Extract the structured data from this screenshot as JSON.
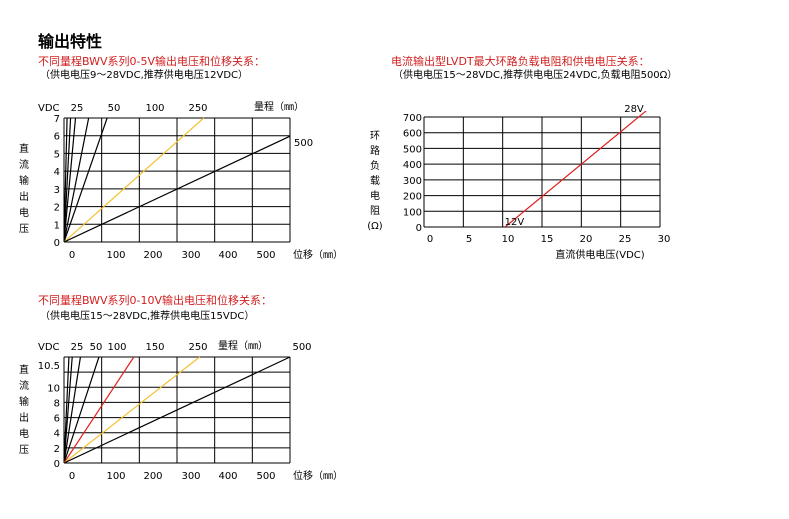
{
  "title": "输出特性",
  "captions": {
    "c1_title": "不同量程BWV系列0-5V输出电压和位移关系：",
    "c1_note": "（供电电压9～28VDC,推荐供电电压12VDC）",
    "c2_title": "电流输出型LVDT最大环路负载电阻和供电电压关系：",
    "c2_note": "（供电电压15～28VDC,推荐供电电压24VDC,负载电阻500Ω）",
    "c3_title": "不同量程BWV系列0-10V输出电压和位移关系：",
    "c3_note": "（供电电压15～28VDC,推荐供电电压15VDC）"
  },
  "colors": {
    "caption_red": "#d21f1f",
    "grid": "#000000",
    "red_line": "#e02020",
    "yellow_line": "#f2c12e",
    "black_line": "#000000"
  },
  "chart_data": [
    {
      "type": "line",
      "y_unit_label": "VDC",
      "ylabel": "直流输出电压",
      "xlabel": "位移（㎜）",
      "range_label": "量程（㎜）",
      "x_ticks": [
        "0",
        "100",
        "200",
        "300",
        "400",
        "500"
      ],
      "y_ticks": [
        "0",
        "1",
        "2",
        "3",
        "4",
        "5",
        "6",
        "7"
      ],
      "xlim": [
        0,
        550
      ],
      "ylim": [
        0,
        7.5
      ],
      "series": [
        {
          "name": "25",
          "color": "black",
          "x": [
            0,
            7.5
          ],
          "y": [
            0,
            7.5
          ],
          "label_pos": "top"
        },
        {
          "name": "",
          "color": "black",
          "x": [
            0,
            16
          ],
          "y": [
            0,
            7.5
          ],
          "label_pos": "none"
        },
        {
          "name": "50",
          "color": "black",
          "x": [
            0,
            28
          ],
          "y": [
            0,
            7.5
          ],
          "label_pos": "top"
        },
        {
          "name": "",
          "color": "black",
          "x": [
            0,
            60
          ],
          "y": [
            0,
            7.5
          ],
          "label_pos": "none"
        },
        {
          "name": "100",
          "color": "black",
          "x": [
            0,
            105
          ],
          "y": [
            0,
            7.5
          ],
          "label_pos": "top"
        },
        {
          "name": "250",
          "color": "yellow",
          "x": [
            0,
            340
          ],
          "y": [
            0,
            7.5
          ],
          "label_pos": "top"
        },
        {
          "name": "500",
          "color": "black",
          "x": [
            0,
            550
          ],
          "y": [
            0,
            6.4
          ],
          "label_pos": "right"
        }
      ]
    },
    {
      "type": "line",
      "ylabel": "环路负载电阻(Ω)",
      "xlabel": "直流供电电压(VDC)",
      "x_ticks": [
        "0",
        "5",
        "10",
        "15",
        "20",
        "25",
        "30"
      ],
      "y_ticks": [
        "0",
        "100",
        "200",
        "300",
        "400",
        "500",
        "600",
        "700"
      ],
      "xlim": [
        0,
        30
      ],
      "ylim": [
        0,
        700
      ],
      "series": [
        {
          "name": "28V",
          "color": "red",
          "x": [
            10.3,
            28.5
          ],
          "y": [
            0,
            750
          ],
          "label_pos": "top"
        }
      ],
      "annotations": [
        {
          "text": "12V",
          "x": 10,
          "y": 0
        }
      ]
    },
    {
      "type": "line",
      "y_unit_label": "VDC",
      "ylabel": "直流输出电压",
      "xlabel": "位移（㎜）",
      "range_label": "量程（㎜）",
      "x_ticks": [
        "0",
        "100",
        "200",
        "300",
        "400",
        "500"
      ],
      "y_ticks": [
        "0",
        "2",
        "4",
        "6",
        "8",
        "10",
        "10.5"
      ],
      "xlim": [
        0,
        550
      ],
      "ylim": [
        0,
        10.5
      ],
      "series": [
        {
          "name": "25",
          "color": "black",
          "x": [
            0,
            12
          ],
          "y": [
            0,
            10.5
          ],
          "label_pos": "top"
        },
        {
          "name": "",
          "color": "black",
          "x": [
            0,
            20
          ],
          "y": [
            0,
            10.5
          ],
          "label_pos": "none"
        },
        {
          "name": "50",
          "color": "black",
          "x": [
            0,
            40
          ],
          "y": [
            0,
            10.5
          ],
          "label_pos": "top"
        },
        {
          "name": "100",
          "color": "black",
          "x": [
            0,
            85
          ],
          "y": [
            0,
            10.5
          ],
          "label_pos": "top"
        },
        {
          "name": "150",
          "color": "red",
          "x": [
            0,
            170
          ],
          "y": [
            0,
            10.5
          ],
          "label_pos": "top"
        },
        {
          "name": "250",
          "color": "yellow",
          "x": [
            0,
            330
          ],
          "y": [
            0,
            10.5
          ],
          "label_pos": "top"
        },
        {
          "name": "500",
          "color": "black",
          "x": [
            0,
            550
          ],
          "y": [
            0,
            10.5
          ],
          "label_pos": "top"
        }
      ]
    }
  ]
}
